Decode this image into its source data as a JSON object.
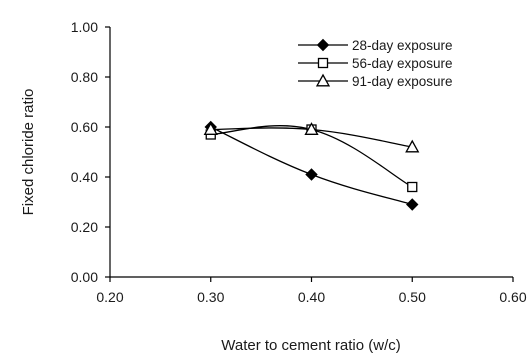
{
  "chart_data": {
    "type": "line",
    "xlabel": "Water to cement ratio (w/c)",
    "ylabel": "Fixed chloride ratio",
    "xlim": [
      0.2,
      0.6
    ],
    "ylim": [
      0.0,
      1.0
    ],
    "x_ticks": [
      "0.20",
      "0.30",
      "0.40",
      "0.50",
      "0.60"
    ],
    "y_ticks": [
      "0.00",
      "0.20",
      "0.40",
      "0.60",
      "0.80",
      "1.00"
    ],
    "grid": false,
    "legend_position": "top-right",
    "x": [
      0.3,
      0.4,
      0.5
    ],
    "series": [
      {
        "name": "28-day exposure",
        "marker": "filled-diamond",
        "values": [
          0.6,
          0.41,
          0.29
        ]
      },
      {
        "name": "56-day exposure",
        "marker": "open-square",
        "values": [
          0.57,
          0.59,
          0.36
        ]
      },
      {
        "name": "91-day exposure",
        "marker": "open-triangle",
        "values": [
          0.59,
          0.59,
          0.52
        ]
      }
    ],
    "line_color": "#000000"
  }
}
